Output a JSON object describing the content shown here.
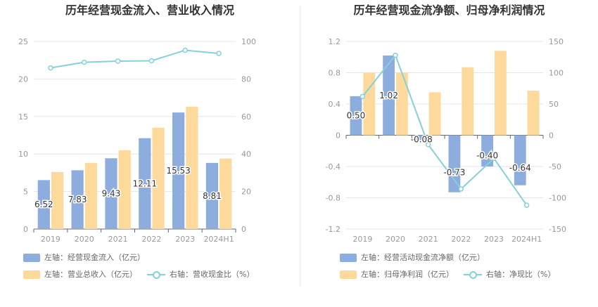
{
  "colors": {
    "bar_primary": "#8dadde",
    "bar_secondary": "#fdd99b",
    "line": "#85d1db",
    "axis_text": "#999999",
    "grid": "#e6e6e6"
  },
  "chart_data": [
    {
      "type": "bar",
      "title": "历年经营现金流入、营业收入情况",
      "categories": [
        "2019",
        "2020",
        "2021",
        "2022",
        "2023",
        "2024H1"
      ],
      "left_axis": {
        "ylim": [
          0,
          25
        ],
        "ticks": [
          "0",
          "5",
          "10",
          "15",
          "20",
          "25"
        ]
      },
      "right_axis": {
        "ylim": [
          0,
          100
        ],
        "ticks": [
          "0",
          "20",
          "40",
          "60",
          "80",
          "100"
        ]
      },
      "series": [
        {
          "name": "左轴：经营现金流入（亿元）",
          "type": "bar",
          "axis": "left",
          "values": [
            6.52,
            7.83,
            9.43,
            12.11,
            15.53,
            8.81
          ],
          "data_labels": [
            "6.52",
            "7.83",
            "9.43",
            "12.11",
            "15.53",
            "8.81"
          ]
        },
        {
          "name": "左轴：营业总收入（亿元）",
          "type": "bar",
          "axis": "left",
          "values": [
            7.6,
            8.8,
            10.5,
            13.5,
            16.3,
            9.4
          ]
        },
        {
          "name": "右轴：营收现金比（%）",
          "type": "line",
          "axis": "right",
          "values": [
            85.9,
            88.9,
            89.5,
            89.7,
            95.3,
            93.6
          ]
        }
      ]
    },
    {
      "type": "bar",
      "title": "历年经营现金流净额、归母净利润情况",
      "categories": [
        "2019",
        "2020",
        "2021",
        "2022",
        "2023",
        "2024H1"
      ],
      "left_axis": {
        "ylim": [
          -1.2,
          1.2
        ],
        "ticks": [
          "-1.2",
          "-0.8",
          "-0.4",
          "0",
          "0.4",
          "0.8",
          "1.2"
        ]
      },
      "right_axis": {
        "ylim": [
          -150,
          150
        ],
        "ticks": [
          "-150",
          "-100",
          "-50",
          "0",
          "50",
          "100",
          "150"
        ]
      },
      "series": [
        {
          "name": "左轴：经营活动现金流净额（亿元）",
          "type": "bar",
          "axis": "left",
          "values": [
            0.5,
            1.02,
            -0.08,
            -0.73,
            -0.4,
            -0.64
          ],
          "data_labels": [
            "0.50",
            "1.02",
            "-0.08",
            "-0.73",
            "-0.40",
            "-0.64"
          ]
        },
        {
          "name": "左轴：归母净利润（亿元）",
          "type": "bar",
          "axis": "left",
          "values": [
            0.8,
            0.8,
            0.55,
            0.87,
            1.08,
            0.57
          ]
        },
        {
          "name": "右轴：净现比（%）",
          "type": "line",
          "axis": "right",
          "values": [
            62,
            128,
            -15,
            -86,
            -37,
            -112
          ]
        }
      ]
    }
  ]
}
